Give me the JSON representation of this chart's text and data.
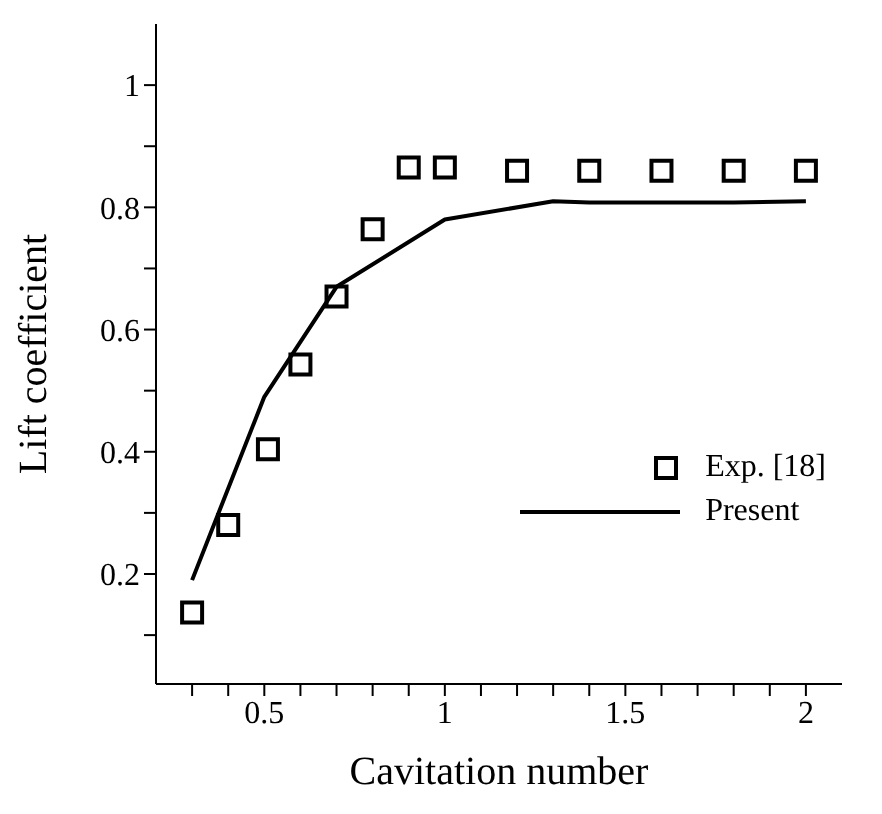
{
  "chart_data": {
    "type": "line",
    "xlabel": "Cavitation number",
    "ylabel": "Lift coefficient",
    "xlim": [
      0.2,
      2.1
    ],
    "ylim": [
      0.02,
      1.1
    ],
    "xticks": [
      {
        "value": 0.3,
        "label": null
      },
      {
        "value": 0.4,
        "label": null
      },
      0.5,
      {
        "value": 0.6,
        "label": null
      },
      {
        "value": 0.7,
        "label": null
      },
      {
        "value": 0.8,
        "label": null
      },
      {
        "value": 0.9,
        "label": null
      },
      1,
      {
        "value": 1.1,
        "label": null
      },
      {
        "value": 1.2,
        "label": null
      },
      {
        "value": 1.3,
        "label": null
      },
      {
        "value": 1.4,
        "label": null
      },
      1.5,
      {
        "value": 1.6,
        "label": null
      },
      {
        "value": 1.7,
        "label": null
      },
      {
        "value": 1.8,
        "label": null
      },
      {
        "value": 1.9,
        "label": null
      },
      2
    ],
    "yticks": [
      {
        "value": 0.1,
        "label": null
      },
      0.2,
      {
        "value": 0.3,
        "label": null
      },
      0.4,
      {
        "value": 0.5,
        "label": null
      },
      0.6,
      {
        "value": 0.7,
        "label": null
      },
      0.8,
      {
        "value": 0.9,
        "label": null
      },
      1
    ],
    "grid": false,
    "legend": "right",
    "series": [
      {
        "name": "Exp. [18]",
        "type": "scatter",
        "marker": "square",
        "color": "#000000",
        "x": [
          0.3,
          0.4,
          0.51,
          0.6,
          0.7,
          0.8,
          0.9,
          1.0,
          1.2,
          1.4,
          1.6,
          1.8,
          2.0
        ],
        "values": [
          0.137,
          0.28,
          0.404,
          0.543,
          0.654,
          0.764,
          0.865,
          0.865,
          0.86,
          0.86,
          0.86,
          0.86,
          0.86
        ]
      },
      {
        "name": "Present",
        "marker": "none",
        "line_style": "solid",
        "color": "#000000",
        "x": [
          0.3,
          0.5,
          0.7,
          1.0,
          1.3,
          1.4,
          1.8,
          2.0
        ],
        "values": [
          0.19,
          0.49,
          0.67,
          0.78,
          0.81,
          0.808,
          0.808,
          0.81
        ]
      }
    ]
  }
}
